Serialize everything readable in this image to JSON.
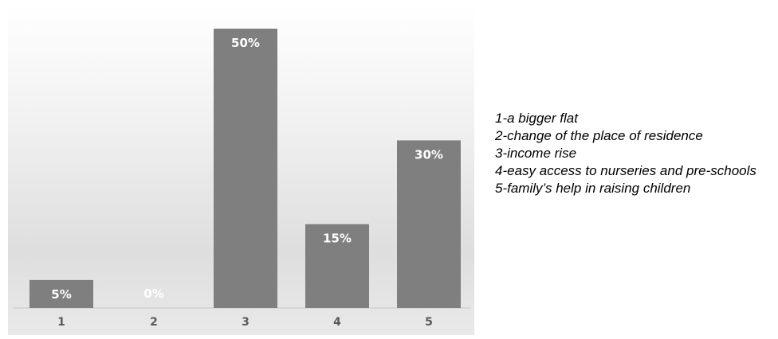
{
  "chart_data": {
    "type": "bar",
    "categories": [
      "1",
      "2",
      "3",
      "4",
      "5"
    ],
    "values": [
      5,
      0,
      50,
      15,
      30
    ],
    "data_labels": [
      "5%",
      "0%",
      "50%",
      "15%",
      "30%"
    ],
    "title": "",
    "xlabel": "",
    "ylabel": "",
    "ylim": [
      0,
      50
    ],
    "grid": false,
    "legend": "right",
    "bar_color": "#7f7f7f"
  },
  "legend": {
    "items": [
      "1-a bigger flat",
      "2-change of the place of residence",
      "3-income rise",
      "4-easy access to nurseries and pre-schools",
      "5-family’s help in raising children"
    ]
  }
}
